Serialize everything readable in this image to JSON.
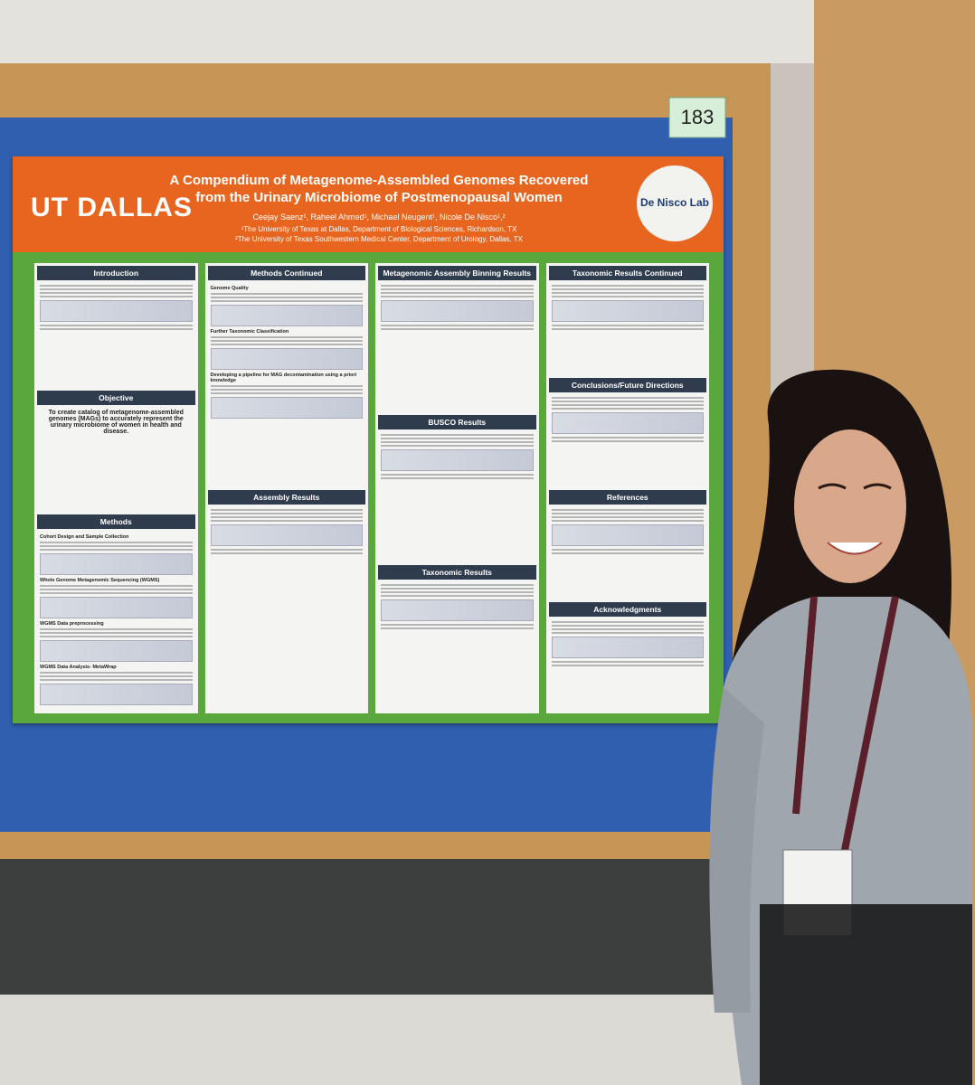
{
  "poster_number": "183",
  "poster": {
    "header": {
      "logo_left": "UT DALLAS",
      "title": "A Compendium of Metagenome-Assembled Genomes Recovered from the Urinary Microbiome of Postmenopausal Women",
      "authors": "Ceejay Saenz¹, Raheel Ahmed¹, Michael Neugent¹, Nicole De Nisco¹,²",
      "affiliations": [
        "¹The University of Texas at Dallas, Department of Biological Sciences, Richardson, TX",
        "²The University of Texas Southwestern Medical Center, Department of Urology, Dallas, TX"
      ],
      "logo_right": "De Nisco Lab"
    },
    "columns": [
      [
        {
          "heading": "Introduction"
        },
        {
          "heading": "Objective",
          "text": "To create catalog of metagenome-assembled genomes (MAGs) to accurately represent the urinary microbiome of women in health and disease."
        },
        {
          "heading": "Methods",
          "subheadings": [
            "Cohort Design and Sample Collection",
            "Whole Genome Metagenomic Sequencing (WGMS)",
            "WGMS Data preprocessing",
            "WGMS Data Analysis- MetaWrap"
          ]
        }
      ],
      [
        {
          "heading": "Methods Continued",
          "subheadings": [
            "Genome Quality",
            "Further Taxonomic Classification",
            "Developing a pipeline for MAG decontamination using a priori knowledge"
          ]
        },
        {
          "heading": "Assembly Results"
        }
      ],
      [
        {
          "heading": "Metagenomic Assembly Binning Results"
        },
        {
          "heading": "BUSCO Results"
        },
        {
          "heading": "Taxonomic Results"
        }
      ],
      [
        {
          "heading": "Taxonomic Results Continued"
        },
        {
          "heading": "Conclusions/Future Directions"
        },
        {
          "heading": "References"
        },
        {
          "heading": "Acknowledgments"
        }
      ]
    ]
  }
}
